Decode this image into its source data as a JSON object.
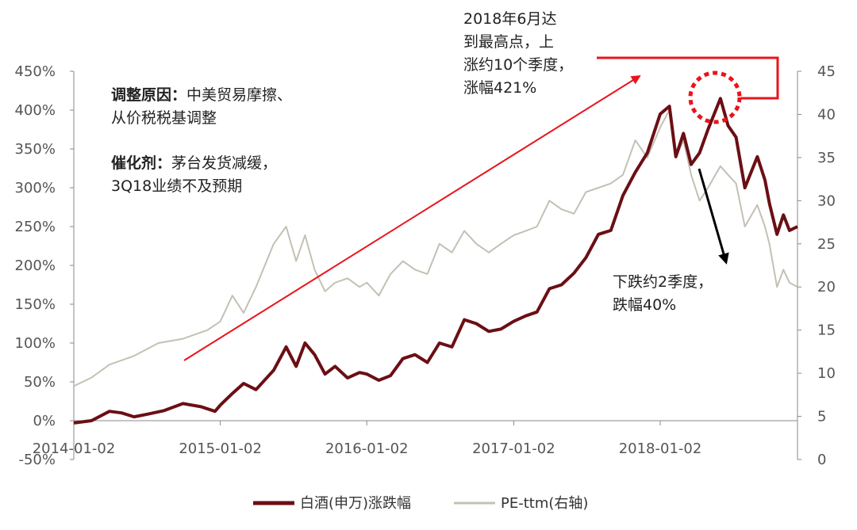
{
  "chart_data": {
    "type": "line",
    "x_tick_labels": [
      "2014-01-02",
      "2015-01-02",
      "2016-01-02",
      "2017-01-02",
      "2018-01-02"
    ],
    "left_axis": {
      "min": -50,
      "max": 450,
      "step": 50,
      "unit": "%",
      "tick_labels": [
        "-50%",
        "0%",
        "50%",
        "100%",
        "150%",
        "200%",
        "250%",
        "300%",
        "350%",
        "400%",
        "450%"
      ]
    },
    "right_axis": {
      "min": 0,
      "max": 45,
      "step": 5,
      "tick_labels": [
        "0",
        "5",
        "10",
        "15",
        "20",
        "25",
        "30",
        "35",
        "40",
        "45"
      ]
    },
    "grid": false,
    "legend_position": "bottom",
    "series": [
      {
        "name": "白酒(申万)涨跌幅",
        "axis": "left",
        "color": "#6b0f14",
        "points": [
          [
            "2014-01-02",
            -3
          ],
          [
            "2014-02-15",
            0
          ],
          [
            "2014-04-01",
            12
          ],
          [
            "2014-05-01",
            10
          ],
          [
            "2014-06-01",
            5
          ],
          [
            "2014-07-01",
            8
          ],
          [
            "2014-08-15",
            13
          ],
          [
            "2014-10-01",
            22
          ],
          [
            "2014-11-15",
            18
          ],
          [
            "2014-12-20",
            12
          ],
          [
            "2015-01-02",
            20
          ],
          [
            "2015-02-01",
            35
          ],
          [
            "2015-03-01",
            48
          ],
          [
            "2015-04-01",
            40
          ],
          [
            "2015-05-15",
            65
          ],
          [
            "2015-06-15",
            95
          ],
          [
            "2015-07-10",
            70
          ],
          [
            "2015-08-01",
            100
          ],
          [
            "2015-08-25",
            85
          ],
          [
            "2015-09-20",
            60
          ],
          [
            "2015-10-15",
            70
          ],
          [
            "2015-11-15",
            55
          ],
          [
            "2015-12-15",
            62
          ],
          [
            "2016-01-02",
            60
          ],
          [
            "2016-02-01",
            52
          ],
          [
            "2016-03-01",
            58
          ],
          [
            "2016-04-01",
            80
          ],
          [
            "2016-05-01",
            85
          ],
          [
            "2016-06-01",
            75
          ],
          [
            "2016-07-01",
            100
          ],
          [
            "2016-08-01",
            95
          ],
          [
            "2016-09-01",
            130
          ],
          [
            "2016-10-01",
            125
          ],
          [
            "2016-11-01",
            115
          ],
          [
            "2016-12-01",
            118
          ],
          [
            "2017-01-02",
            128
          ],
          [
            "2017-02-01",
            135
          ],
          [
            "2017-03-01",
            140
          ],
          [
            "2017-04-01",
            170
          ],
          [
            "2017-05-01",
            175
          ],
          [
            "2017-06-01",
            190
          ],
          [
            "2017-07-01",
            210
          ],
          [
            "2017-08-01",
            240
          ],
          [
            "2017-09-01",
            245
          ],
          [
            "2017-10-01",
            290
          ],
          [
            "2017-11-01",
            320
          ],
          [
            "2017-12-01",
            345
          ],
          [
            "2018-01-02",
            395
          ],
          [
            "2018-01-25",
            405
          ],
          [
            "2018-02-10",
            340
          ],
          [
            "2018-03-01",
            370
          ],
          [
            "2018-03-20",
            330
          ],
          [
            "2018-04-10",
            345
          ],
          [
            "2018-05-01",
            375
          ],
          [
            "2018-06-01",
            415
          ],
          [
            "2018-06-20",
            380
          ],
          [
            "2018-07-10",
            365
          ],
          [
            "2018-08-01",
            300
          ],
          [
            "2018-09-01",
            340
          ],
          [
            "2018-09-20",
            310
          ],
          [
            "2018-10-01",
            280
          ],
          [
            "2018-10-20",
            240
          ],
          [
            "2018-11-05",
            265
          ],
          [
            "2018-11-20",
            245
          ],
          [
            "2018-12-10",
            250
          ]
        ]
      },
      {
        "name": "PE-ttm(右轴)",
        "axis": "right",
        "color": "#c4c0b4",
        "points": [
          [
            "2014-01-02",
            8.5
          ],
          [
            "2014-02-15",
            9.5
          ],
          [
            "2014-04-01",
            11
          ],
          [
            "2014-06-01",
            12
          ],
          [
            "2014-08-01",
            13.5
          ],
          [
            "2014-10-01",
            14
          ],
          [
            "2014-12-01",
            15
          ],
          [
            "2015-01-02",
            16
          ],
          [
            "2015-02-01",
            19
          ],
          [
            "2015-03-01",
            17
          ],
          [
            "2015-04-01",
            20
          ],
          [
            "2015-05-15",
            25
          ],
          [
            "2015-06-15",
            27
          ],
          [
            "2015-07-10",
            23
          ],
          [
            "2015-08-01",
            26
          ],
          [
            "2015-08-25",
            22
          ],
          [
            "2015-09-20",
            19.5
          ],
          [
            "2015-10-15",
            20.5
          ],
          [
            "2015-11-15",
            21
          ],
          [
            "2015-12-15",
            20
          ],
          [
            "2016-01-02",
            20.5
          ],
          [
            "2016-02-01",
            19
          ],
          [
            "2016-03-01",
            21.5
          ],
          [
            "2016-04-01",
            23
          ],
          [
            "2016-05-01",
            22
          ],
          [
            "2016-06-01",
            21.5
          ],
          [
            "2016-07-01",
            25
          ],
          [
            "2016-08-01",
            24
          ],
          [
            "2016-09-01",
            26.5
          ],
          [
            "2016-10-01",
            25
          ],
          [
            "2016-11-01",
            24
          ],
          [
            "2016-12-01",
            25
          ],
          [
            "2017-01-02",
            26
          ],
          [
            "2017-02-01",
            26.5
          ],
          [
            "2017-03-01",
            27
          ],
          [
            "2017-04-01",
            30
          ],
          [
            "2017-05-01",
            29
          ],
          [
            "2017-06-01",
            28.5
          ],
          [
            "2017-07-01",
            31
          ],
          [
            "2017-08-01",
            31.5
          ],
          [
            "2017-09-01",
            32
          ],
          [
            "2017-10-01",
            33
          ],
          [
            "2017-11-01",
            37
          ],
          [
            "2017-12-01",
            35
          ],
          [
            "2018-01-02",
            38.5
          ],
          [
            "2018-01-25",
            40.5
          ],
          [
            "2018-02-10",
            35
          ],
          [
            "2018-03-01",
            37
          ],
          [
            "2018-03-20",
            33
          ],
          [
            "2018-04-10",
            30
          ],
          [
            "2018-05-01",
            31.5
          ],
          [
            "2018-06-01",
            34
          ],
          [
            "2018-06-20",
            33
          ],
          [
            "2018-07-10",
            32
          ],
          [
            "2018-08-01",
            27
          ],
          [
            "2018-09-01",
            29.5
          ],
          [
            "2018-09-20",
            27
          ],
          [
            "2018-10-01",
            25
          ],
          [
            "2018-10-20",
            20
          ],
          [
            "2018-11-05",
            22
          ],
          [
            "2018-11-20",
            20.5
          ],
          [
            "2018-12-10",
            20
          ]
        ]
      }
    ],
    "annotations": {
      "reason": {
        "label1": "调整原因：",
        "text1": "中美贸易摩擦、",
        "text2": "从价税税基调整",
        "label2": "催化剂：",
        "text3": "茅台发货减缓，",
        "text4": "3Q18业绩不及预期"
      },
      "peak": [
        "2018年6月达",
        "到最高点，上",
        "涨约10个季度，",
        "涨幅421%"
      ],
      "drop": [
        "下跌约2季度，",
        "跌幅40%"
      ]
    },
    "colors": {
      "baijiu": "#6b0f14",
      "pe": "#c4c0b4",
      "annotation_red": "#e8141c",
      "annotation_black": "#000000"
    }
  }
}
